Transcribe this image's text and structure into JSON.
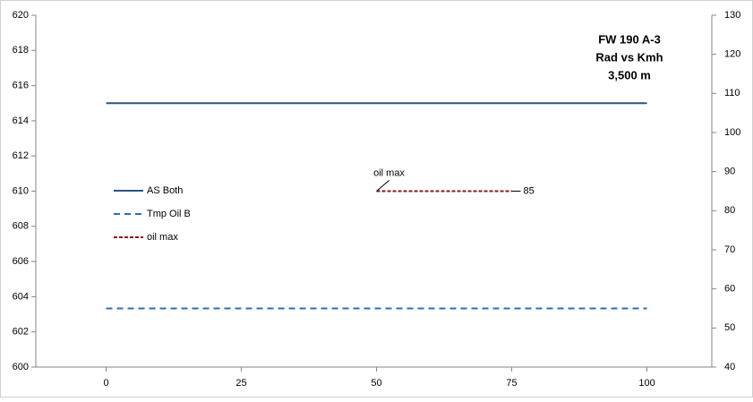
{
  "chart_data": {
    "type": "line",
    "title": [
      "FW 190 A-3",
      "Rad vs Kmh",
      "3,500 m"
    ],
    "xlim": [
      -13,
      112
    ],
    "xticks": [
      0,
      25,
      50,
      75,
      100
    ],
    "ylim": [
      600,
      620
    ],
    "yticks": [
      600,
      602,
      604,
      606,
      608,
      610,
      612,
      614,
      616,
      618,
      620
    ],
    "y2lim": [
      40,
      130
    ],
    "y2ticks": [
      40,
      50,
      60,
      70,
      80,
      90,
      100,
      110,
      120,
      130
    ],
    "grid": false,
    "legend": "left",
    "series": [
      {
        "name": "AS Both",
        "color": "#2a5486",
        "dash": "solid",
        "x": [
          0,
          100
        ],
        "values": [
          615,
          615
        ]
      },
      {
        "name": "Tmp Oil B",
        "color": "#2e6db4",
        "dash": "dashed",
        "axis": "y2",
        "x": [
          0,
          100
        ],
        "values": [
          55,
          55
        ]
      },
      {
        "name": "oil max",
        "color": "#8b1a1a",
        "dash": "dotted",
        "axis": "y2",
        "x": [
          50,
          75
        ],
        "values": [
          85,
          85
        ]
      }
    ]
  }
}
